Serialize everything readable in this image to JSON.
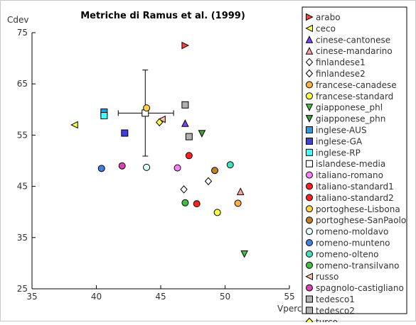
{
  "chart_data": {
    "type": "scatter",
    "title": "Metriche di Ramus et al. (1999)",
    "xlabel": "Vperc",
    "ylabel": "Cdev",
    "xlim": [
      35,
      55
    ],
    "ylim": [
      25,
      75
    ],
    "xticks": [
      35,
      40,
      45,
      50,
      55
    ],
    "yticks": [
      25,
      35,
      45,
      55,
      65,
      75
    ],
    "grid": false,
    "legend": "right",
    "series": [
      {
        "name": "arabo",
        "marker": "triangle-right",
        "color": "#ff4040",
        "points": [
          [
            46.9,
            72.5
          ]
        ]
      },
      {
        "name": "ceco",
        "marker": "triangle-left",
        "color": "#ffff40",
        "points": [
          [
            38.3,
            57.0
          ]
        ]
      },
      {
        "name": "cinese-cantonese",
        "marker": "triangle-up",
        "color": "#8040ff",
        "points": [
          [
            46.9,
            57.3
          ]
        ]
      },
      {
        "name": "cinese-mandarino",
        "marker": "triangle-up",
        "color": "#ffa0a0",
        "points": [
          [
            51.2,
            44.0
          ]
        ]
      },
      {
        "name": "finlandese1",
        "marker": "diamond",
        "color": "#ffffff",
        "points": [
          [
            46.8,
            44.4
          ]
        ]
      },
      {
        "name": "finlandese2",
        "marker": "diamond",
        "color": "#ffffff",
        "points": [
          [
            48.7,
            46.0
          ]
        ]
      },
      {
        "name": "francese-canadese",
        "marker": "circle",
        "color": "#ffb040",
        "points": [
          [
            51.0,
            41.7
          ]
        ]
      },
      {
        "name": "francese-standard",
        "marker": "circle",
        "color": "#ffff40",
        "points": [
          [
            49.4,
            39.9
          ]
        ]
      },
      {
        "name": "giapponese_phl",
        "marker": "triangle-down",
        "color": "#40c040",
        "points": [
          [
            51.5,
            31.8
          ]
        ]
      },
      {
        "name": "giapponese_phn",
        "marker": "triangle-down",
        "color": "#40a040",
        "points": [
          [
            48.2,
            55.3
          ]
        ]
      },
      {
        "name": "inglese-AUS",
        "marker": "square",
        "color": "#20a0e0",
        "points": [
          [
            40.6,
            59.5
          ]
        ]
      },
      {
        "name": "inglese-GA",
        "marker": "square",
        "color": "#4040e0",
        "points": [
          [
            42.2,
            55.4
          ]
        ]
      },
      {
        "name": "inglese-RP",
        "marker": "square",
        "color": "#40ffff",
        "points": [
          [
            40.6,
            58.8
          ]
        ]
      },
      {
        "name": "islandese-media",
        "marker": "square",
        "color": "#ffffff",
        "points": [
          [
            43.8,
            59.3
          ]
        ]
      },
      {
        "name": "italiano-romano",
        "marker": "circle",
        "color": "#ff80ff",
        "points": [
          [
            46.3,
            48.6
          ]
        ]
      },
      {
        "name": "italiano-standard1",
        "marker": "circle",
        "color": "#ff2020",
        "points": [
          [
            47.2,
            51.0
          ]
        ]
      },
      {
        "name": "italiano-standard2",
        "marker": "circle",
        "color": "#ff2020",
        "points": [
          [
            47.8,
            41.6
          ]
        ]
      },
      {
        "name": "portoghese-Lisbona",
        "marker": "circle",
        "color": "#ffd040",
        "points": [
          [
            43.9,
            60.3
          ]
        ]
      },
      {
        "name": "portoghese-SanPaolo",
        "marker": "circle",
        "color": "#c08020",
        "points": [
          [
            49.2,
            48.1
          ]
        ]
      },
      {
        "name": "romeno-moldavo",
        "marker": "circle",
        "color": "#e0ffff",
        "points": [
          [
            43.9,
            48.7
          ]
        ]
      },
      {
        "name": "romeno-munteno",
        "marker": "circle",
        "color": "#4080e0",
        "points": [
          [
            40.4,
            48.5
          ]
        ]
      },
      {
        "name": "romeno-olteno",
        "marker": "circle",
        "color": "#40e0c0",
        "points": [
          [
            50.4,
            49.2
          ]
        ]
      },
      {
        "name": "romeno-transilvano",
        "marker": "circle",
        "color": "#40c040",
        "points": [
          [
            46.9,
            41.8
          ]
        ]
      },
      {
        "name": "russo",
        "marker": "triangle-left",
        "color": "#ffc0a0",
        "points": [
          [
            45.1,
            58.1
          ]
        ]
      },
      {
        "name": "spagnolo-castigliano",
        "marker": "circle",
        "color": "#e040b0",
        "points": [
          [
            42.0,
            49.0
          ]
        ]
      },
      {
        "name": "tedesco1",
        "marker": "square",
        "color": "#b0b0b0",
        "points": [
          [
            46.9,
            60.9
          ]
        ]
      },
      {
        "name": "tedesco2",
        "marker": "square",
        "color": "#b0b0b0",
        "points": [
          [
            47.2,
            54.7
          ]
        ]
      },
      {
        "name": "turco",
        "marker": "diamond",
        "color": "#ffff40",
        "points": [
          [
            44.9,
            57.5
          ]
        ]
      }
    ],
    "error_bar": {
      "series": "islandese-media",
      "x": 43.8,
      "y": 59.3,
      "x_range": [
        41.7,
        46.0
      ],
      "y_range": [
        50.9,
        67.7
      ]
    }
  }
}
